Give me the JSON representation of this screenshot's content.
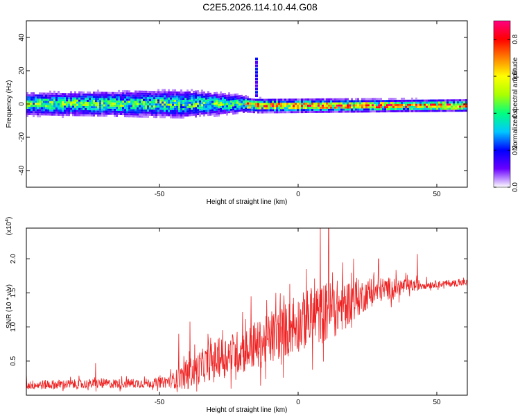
{
  "title": "C2E5.2026.114.10.44.G08",
  "chart_data": [
    {
      "type": "heatmap",
      "xlabel": "Height of straight line (km)",
      "ylabel": "Frequency (Hz)",
      "xlim": [
        -98,
        61
      ],
      "ylim": [
        -50,
        50
      ],
      "x_ticks": [
        -50,
        0,
        50
      ],
      "x_tick_labels": [
        "-50",
        "0",
        "50"
      ],
      "y_ticks": [
        -40,
        -20,
        0,
        20,
        40
      ],
      "y_tick_labels": [
        "-40",
        "-20",
        "0",
        "20",
        "40"
      ],
      "colorbar": {
        "label": "Normalized spectral amplitude",
        "range": [
          0.0,
          0.9
        ],
        "ticks": [
          0.0,
          0.2,
          0.4,
          0.6,
          0.8
        ],
        "tick_labels": [
          "0.0",
          "0.2",
          "0.4",
          "0.6",
          "0.8"
        ],
        "colors": [
          "#ffffff",
          "#6a00ff",
          "#0000ff",
          "#00c8ff",
          "#00ff7f",
          "#aaff00",
          "#ffff00",
          "#ff8000",
          "#ff0000",
          "#ff0080"
        ]
      },
      "band": {
        "center_hz": [
          [
            -98,
            0
          ],
          [
            -20,
            0
          ],
          [
            -15,
            -1
          ],
          [
            61,
            -1
          ]
        ],
        "halfwidth_hz": [
          [
            -98,
            5
          ],
          [
            -40,
            6
          ],
          [
            -20,
            4
          ],
          [
            -18,
            3
          ],
          [
            61,
            2.5
          ]
        ],
        "peak_amplitude": [
          [
            -98,
            0.5
          ],
          [
            -20,
            0.5
          ],
          [
            -18,
            0.75
          ],
          [
            61,
            0.85
          ]
        ],
        "spur_km": -15,
        "spur_hz_range": [
          5,
          28
        ]
      }
    },
    {
      "type": "line",
      "xlabel": "Height of straight line (km)",
      "ylabel": "SNR (10 * v/v)",
      "y_scale_label": "(x10",
      "y_scale_exp": "4",
      "y_scale_close": ")",
      "xlim": [
        -98,
        61
      ],
      "ylim": [
        0.0,
        2.45
      ],
      "x_ticks": [
        -50,
        0,
        50
      ],
      "x_tick_labels": [
        "-50",
        "0",
        "50"
      ],
      "y_ticks": [
        0.5,
        1.0,
        1.5,
        2.0
      ],
      "y_tick_labels": [
        "0.5",
        "1.0",
        "1.5",
        "2.0"
      ],
      "series": [
        {
          "name": "SNR",
          "color": "#ee2222",
          "trend_x": [
            -98,
            -50,
            -45,
            -40,
            -35,
            -30,
            -25,
            -20,
            -15,
            -10,
            -5,
            0,
            5,
            10,
            15,
            20,
            25,
            30,
            35,
            40,
            45,
            50,
            55,
            61
          ],
          "trend_y": [
            0.15,
            0.18,
            0.22,
            0.3,
            0.42,
            0.52,
            0.6,
            0.65,
            0.72,
            0.82,
            0.95,
            1.05,
            1.15,
            1.22,
            1.3,
            1.4,
            1.48,
            1.55,
            1.58,
            1.6,
            1.62,
            1.63,
            1.64,
            1.65
          ],
          "noise_y": [
            0.07,
            0.07,
            0.12,
            0.22,
            0.25,
            0.28,
            0.3,
            0.33,
            0.35,
            0.38,
            0.4,
            0.42,
            0.45,
            0.45,
            0.4,
            0.3,
            0.22,
            0.18,
            0.15,
            0.1,
            0.07,
            0.05,
            0.05,
            0.05
          ],
          "peaks": [
            [
              -98,
              0.32
            ],
            [
              -73,
              0.47
            ],
            [
              -43,
              0.9
            ],
            [
              -39,
              1.08
            ],
            [
              -20,
              1.22
            ],
            [
              -17,
              1.45
            ],
            [
              -8,
              1.5
            ],
            [
              -3,
              1.63
            ],
            [
              3,
              1.85
            ],
            [
              8,
              2.48
            ],
            [
              11,
              2.48
            ],
            [
              20,
              2.0
            ],
            [
              29,
              2.0
            ],
            [
              43,
              2.07
            ]
          ]
        }
      ]
    }
  ]
}
